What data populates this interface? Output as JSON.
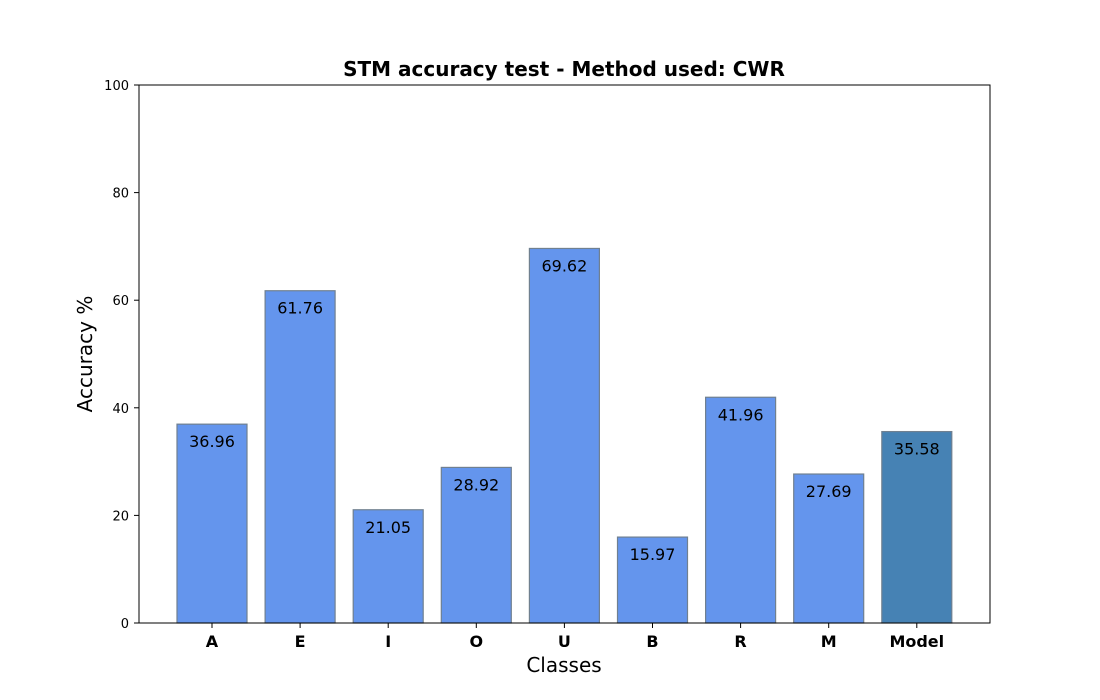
{
  "chart_data": {
    "type": "bar",
    "title": "STM accuracy test - Method used: CWR",
    "xlabel": "Classes",
    "ylabel": "Accuracy %",
    "ylim": [
      0,
      100
    ],
    "yticks": [
      0,
      20,
      40,
      60,
      80,
      100
    ],
    "categories": [
      "A",
      "E",
      "I",
      "O",
      "U",
      "B",
      "R",
      "M",
      "Model"
    ],
    "values": [
      36.96,
      61.76,
      21.05,
      28.92,
      69.62,
      15.97,
      41.96,
      27.69,
      35.58
    ],
    "value_labels": [
      "36.96",
      "61.76",
      "21.05",
      "28.92",
      "69.62",
      "15.97",
      "41.96",
      "27.69",
      "35.58"
    ],
    "bar_color": "#6495ED",
    "highlight_color": "#4682B4",
    "highlight_category": "Model",
    "edge_color": "#708090",
    "grid": false,
    "legend": "none"
  }
}
